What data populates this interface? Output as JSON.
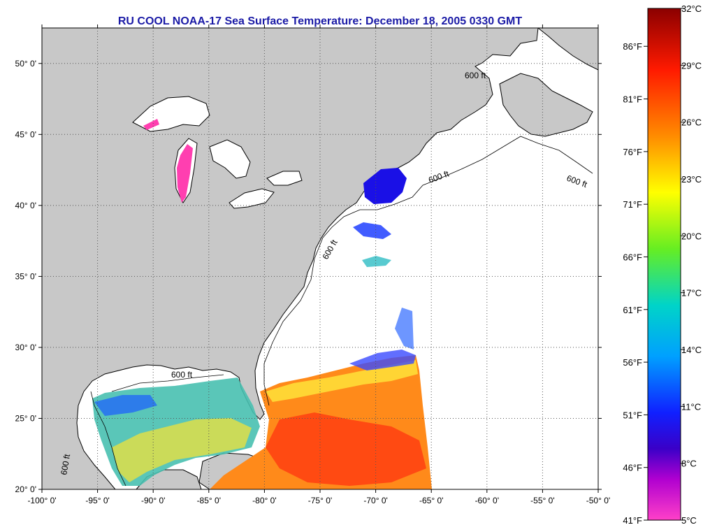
{
  "title": "RU COOL  NOAA-17  Sea Surface Temperature:  December 18, 2005 0330 GMT",
  "map": {
    "lon_range": [
      -100,
      -50
    ],
    "lat_range": [
      20,
      52.5
    ],
    "lon_ticks": [
      "-100° 0'",
      "-95° 0'",
      "-90° 0'",
      "-85° 0'",
      "-80° 0'",
      "-75° 0'",
      "-70° 0'",
      "-65° 0'",
      "-60° 0'",
      "-55° 0'",
      "-50° 0'"
    ],
    "lat_ticks": [
      "20° 0'",
      "25° 0'",
      "30° 0'",
      "35° 0'",
      "40° 0'",
      "45° 0'",
      "50° 0'"
    ],
    "isobath_label": "600 ft",
    "grid": true,
    "colors": {
      "land": "#c8c8c8",
      "ocean": "#ffffff",
      "coastline": "#000000",
      "grid": "#666666"
    }
  },
  "colorbar": {
    "celsius_labels": [
      "32°C",
      "29°C",
      "26°C",
      "23°C",
      "20°C",
      "17°C",
      "14°C",
      "11°C",
      "8°C",
      "5°C"
    ],
    "fahrenheit_labels": [
      "86°F",
      "81°F",
      "76°F",
      "71°F",
      "66°F",
      "61°F",
      "56°F",
      "51°F",
      "46°F",
      "41°F"
    ],
    "celsius_range": [
      5,
      32
    ]
  }
}
